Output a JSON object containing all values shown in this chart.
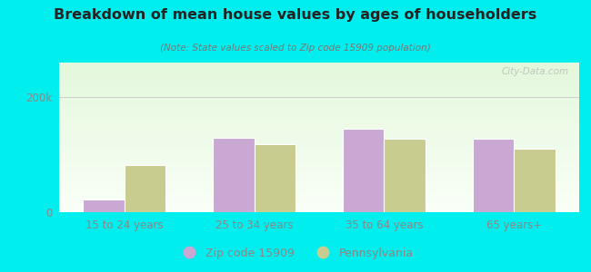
{
  "title": "Breakdown of mean house values by ages of householders",
  "subtitle": "(Note: State values scaled to Zip code 15909 population)",
  "categories": [
    "15 to 24 years",
    "25 to 34 years",
    "35 to 64 years",
    "65 years+"
  ],
  "zip_values": [
    22000,
    130000,
    145000,
    128000
  ],
  "pa_values": [
    82000,
    118000,
    128000,
    110000
  ],
  "zip_color": "#c9a8d4",
  "pa_color": "#c8cc8e",
  "bar_edge_color": "#ffffff",
  "yticks": [
    0,
    200000
  ],
  "ytick_labels": [
    "0",
    "200k"
  ],
  "ylim": [
    0,
    260000
  ],
  "outer_bg": "#00eeee",
  "title_color": "#222222",
  "subtitle_color": "#777777",
  "axis_label_color": "#888888",
  "legend_zip": "Zip code 15909",
  "legend_pa": "Pennsylvania",
  "watermark": "City-Data.com",
  "bar_width": 0.32
}
